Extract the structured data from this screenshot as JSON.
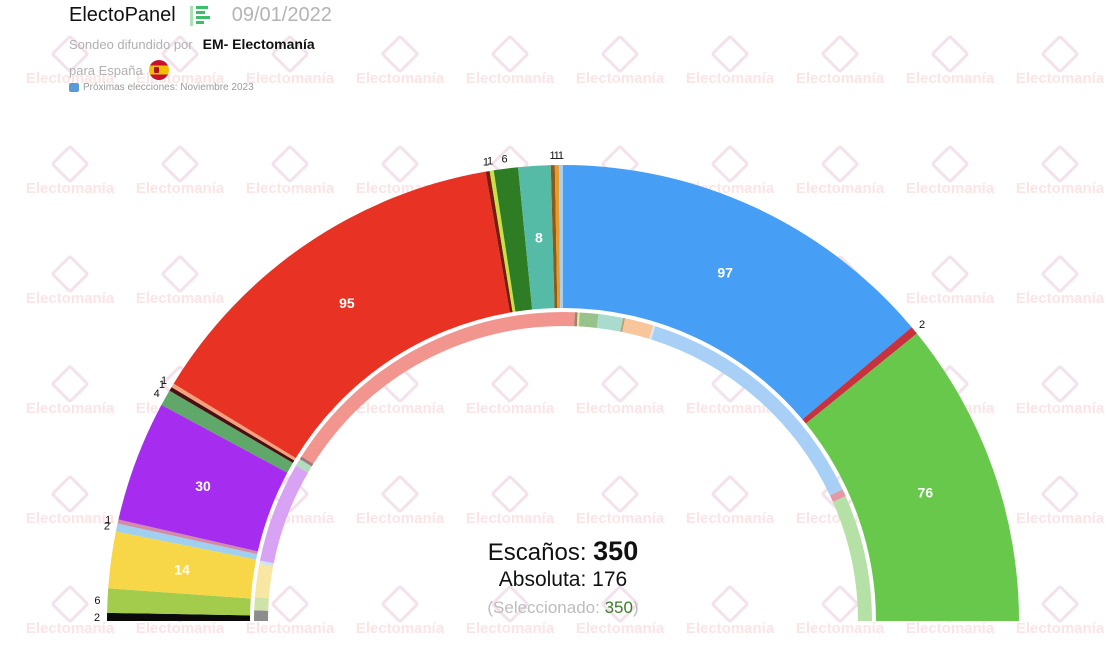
{
  "header": {
    "app_title": "ElectoPanel",
    "date": "09/01/2022",
    "subtitle_prefix": "Sondeo difundido por",
    "source": "EM- Electomanía",
    "country_prefix": "para España",
    "next_elections": "Próximas elecciones: Noviembre 2023"
  },
  "watermark": "Electomanía",
  "summary": {
    "seats_label": "Escaños:",
    "seats_total": "350",
    "majority_label": "Absoluta:",
    "majority_value": "176",
    "selected_prefix": "(Seleccionado: ",
    "selected_value": "350",
    "selected_suffix": ")"
  },
  "chart_data": {
    "type": "hemicycle",
    "title": "ElectoPanel 09/01/2022",
    "total_seats": 350,
    "majority": 176,
    "outer_ring": {
      "description": "Estimated seats per party, left to right",
      "segments": [
        {
          "seats": 2,
          "color": "#0a0a0a"
        },
        {
          "seats": 6,
          "color": "#a4cc4c"
        },
        {
          "seats": 14,
          "color": "#f7d748"
        },
        {
          "seats": 2,
          "color": "#9fd0f0"
        },
        {
          "seats": 1,
          "color": "#d38ba6"
        },
        {
          "seats": 30,
          "color": "#a62cf0"
        },
        {
          "seats": 4,
          "color": "#5fa86a"
        },
        {
          "seats": 1,
          "color": "#4a0f12"
        },
        {
          "seats": 1,
          "color": "#f6a17e"
        },
        {
          "seats": 95,
          "color": "#e83223"
        },
        {
          "seats": 1,
          "color": "#7a1b12"
        },
        {
          "seats": 1,
          "color": "#c7e046"
        },
        {
          "seats": 6,
          "color": "#2e7d25"
        },
        {
          "seats": 8,
          "color": "#55bba6"
        },
        {
          "seats": 1,
          "color": "#8a5a1c"
        },
        {
          "seats": 1,
          "color": "#e89a2a"
        },
        {
          "seats": 1,
          "color": "#a7cff2"
        },
        {
          "seats": 97,
          "color": "#479ff5"
        },
        {
          "seats": 2,
          "color": "#c8323e"
        },
        {
          "seats": 76,
          "color": "#67c84c"
        }
      ],
      "labels": [
        "2",
        "6",
        "14",
        "2",
        "1",
        "30",
        "4",
        "1",
        "1",
        "95",
        "1",
        "1",
        "6",
        "8",
        "1",
        "1",
        "1",
        "97",
        "2",
        "76"
      ]
    },
    "inner_ring": {
      "description": "Pale comparison ring (angles in degrees from left)",
      "segments": [
        {
          "from": 0,
          "to": 2,
          "color": "#8c8c8c"
        },
        {
          "from": 2,
          "to": 4.4,
          "color": "#cfe3a8"
        },
        {
          "from": 4.4,
          "to": 10.7,
          "color": "#f8e6a3"
        },
        {
          "from": 10.7,
          "to": 11.3,
          "color": "#cde4f6"
        },
        {
          "from": 11.3,
          "to": 30.2,
          "color": "#d9a3f5"
        },
        {
          "from": 30.2,
          "to": 31.6,
          "color": "#b3dbbd"
        },
        {
          "from": 31.6,
          "to": 32.2,
          "color": "#a0787a"
        },
        {
          "from": 32.2,
          "to": 92.2,
          "color": "#f3958f"
        },
        {
          "from": 92.2,
          "to": 92.7,
          "color": "#a08070"
        },
        {
          "from": 92.7,
          "to": 93.1,
          "color": "#d9ec9c"
        },
        {
          "from": 93.1,
          "to": 96.6,
          "color": "#98c28c"
        },
        {
          "from": 96.6,
          "to": 101.2,
          "color": "#a9dccf"
        },
        {
          "from": 101.2,
          "to": 101.6,
          "color": "#c0a070"
        },
        {
          "from": 101.6,
          "to": 107.0,
          "color": "#f8c69a"
        },
        {
          "from": 107.0,
          "to": 107.4,
          "color": "#d5e8f8"
        },
        {
          "from": 107.4,
          "to": 154.8,
          "color": "#a8d0f7"
        },
        {
          "from": 154.8,
          "to": 156.2,
          "color": "#e49aa4"
        },
        {
          "from": 156.2,
          "to": 180,
          "color": "#b5e1a6"
        }
      ]
    }
  }
}
